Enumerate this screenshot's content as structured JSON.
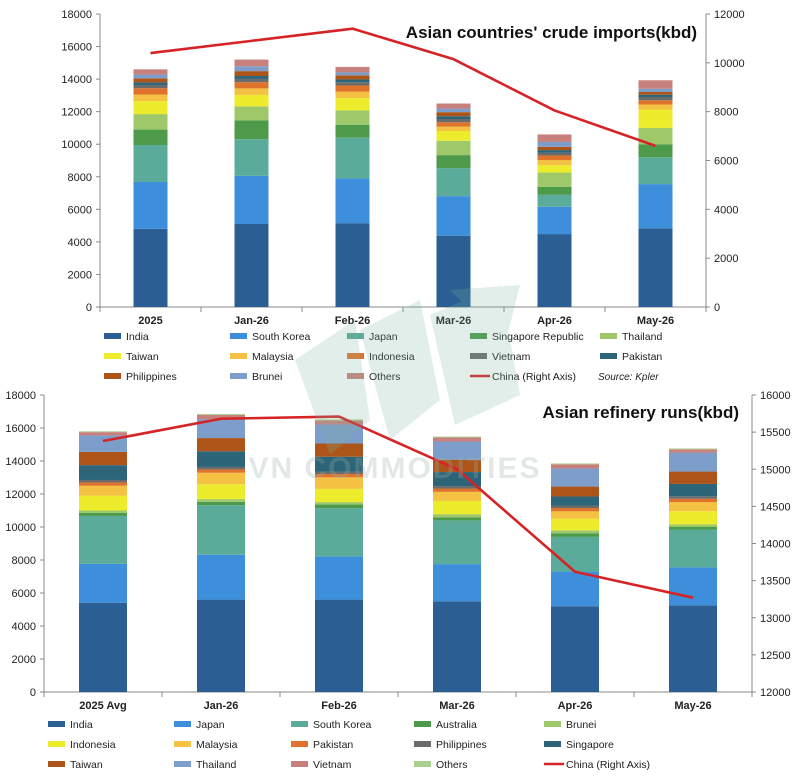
{
  "watermark": "VN COMMODITIES",
  "chart_data": [
    {
      "type": "bar",
      "stacked": true,
      "title": "Asian countries' crude imports(kbd)",
      "source": "Source: Kpler",
      "categories": [
        "2025",
        "Jan-26",
        "Feb-26",
        "Mar-26",
        "Apr-26",
        "May-26"
      ],
      "ylim": [
        0,
        18000
      ],
      "yticks": [
        0,
        2000,
        4000,
        6000,
        8000,
        10000,
        12000,
        14000,
        16000,
        18000
      ],
      "y2lim": [
        0,
        12000
      ],
      "y2ticks": [
        0,
        2000,
        4000,
        6000,
        8000,
        10000,
        12000
      ],
      "grid": false,
      "legend_position": "bottom",
      "series": [
        {
          "name": "India",
          "color": "#2b5f94",
          "values": [
            4800,
            5100,
            5150,
            4380,
            4480,
            4830
          ]
        },
        {
          "name": "South Korea",
          "color": "#3e8fdb",
          "values": [
            2880,
            2960,
            2750,
            2430,
            1680,
            2720
          ]
        },
        {
          "name": "Japan",
          "color": "#5aab9a",
          "values": [
            2270,
            2250,
            2500,
            1720,
            730,
            1650
          ]
        },
        {
          "name": "Singapore Republic",
          "color": "#4e9a4b",
          "values": [
            950,
            1150,
            800,
            800,
            500,
            800
          ]
        },
        {
          "name": "Thailand",
          "color": "#9ec86a",
          "values": [
            950,
            870,
            880,
            880,
            870,
            1000
          ]
        },
        {
          "name": "Taiwan",
          "color": "#ecec2c",
          "values": [
            800,
            700,
            750,
            600,
            450,
            1130
          ]
        },
        {
          "name": "Malaysia",
          "color": "#f4c143",
          "values": [
            400,
            400,
            400,
            270,
            320,
            310
          ]
        },
        {
          "name": "Indonesia",
          "color": "#e0732c",
          "values": [
            390,
            380,
            380,
            270,
            280,
            260
          ]
        },
        {
          "name": "Vietnam",
          "color": "#6b6b6b",
          "values": [
            200,
            200,
            200,
            200,
            160,
            200
          ]
        },
        {
          "name": "Pakistan",
          "color": "#2c6478",
          "values": [
            160,
            180,
            170,
            170,
            170,
            140
          ]
        },
        {
          "name": "Philippines",
          "color": "#ad5418",
          "values": [
            250,
            300,
            250,
            250,
            200,
            170
          ]
        },
        {
          "name": "Brunei",
          "color": "#7d9dca",
          "values": [
            230,
            300,
            180,
            220,
            300,
            200
          ]
        },
        {
          "name": "Others",
          "color": "#c8807c",
          "values": [
            320,
            410,
            340,
            310,
            460,
            520
          ]
        }
      ],
      "line_series": {
        "name": "China (Right Axis)",
        "axis": "right",
        "color": "#d62326",
        "values": [
          10400,
          10900,
          11400,
          10150,
          8050,
          6600
        ]
      }
    },
    {
      "type": "bar",
      "stacked": true,
      "title": "Asian refinery runs(kbd)",
      "categories": [
        "2025 Avg",
        "Jan-26",
        "Feb-26",
        "Mar-26",
        "Apr-26",
        "May-26"
      ],
      "ylim": [
        0,
        18000
      ],
      "yticks": [
        0,
        2000,
        4000,
        6000,
        8000,
        10000,
        12000,
        14000,
        16000,
        18000
      ],
      "y2lim": [
        12000,
        16000
      ],
      "y2ticks": [
        12000,
        12500,
        13000,
        13500,
        14000,
        14500,
        15000,
        15500,
        16000
      ],
      "grid": false,
      "legend_position": "bottom",
      "series": [
        {
          "name": "India",
          "color": "#2b5f94",
          "values": [
            5400,
            5600,
            5600,
            5500,
            5200,
            5250
          ]
        },
        {
          "name": "Japan",
          "color": "#3e8fdb",
          "values": [
            2370,
            2720,
            2620,
            2250,
            2100,
            2300
          ]
        },
        {
          "name": "South Korea",
          "color": "#5aab9a",
          "values": [
            2900,
            3000,
            2920,
            2650,
            2100,
            2300
          ]
        },
        {
          "name": "Australia",
          "color": "#4e9a4b",
          "values": [
            180,
            200,
            220,
            180,
            220,
            150
          ]
        },
        {
          "name": "Brunei",
          "color": "#9ec86a",
          "values": [
            150,
            170,
            150,
            200,
            180,
            160
          ]
        },
        {
          "name": "Indonesia",
          "color": "#ecec2c",
          "values": [
            900,
            900,
            800,
            800,
            700,
            800
          ]
        },
        {
          "name": "Malaysia",
          "color": "#f4c143",
          "values": [
            600,
            700,
            700,
            550,
            450,
            550
          ]
        },
        {
          "name": "Pakistan",
          "color": "#e0732c",
          "values": [
            200,
            200,
            200,
            200,
            200,
            200
          ]
        },
        {
          "name": "Philippines",
          "color": "#6b6b6b",
          "values": [
            150,
            150,
            150,
            150,
            150,
            150
          ]
        },
        {
          "name": "Singapore",
          "color": "#2c6478",
          "values": [
            900,
            950,
            900,
            850,
            550,
            750
          ]
        },
        {
          "name": "Taiwan",
          "color": "#ad5418",
          "values": [
            800,
            800,
            800,
            750,
            600,
            750
          ]
        },
        {
          "name": "Thailand",
          "color": "#7d9dca",
          "values": [
            1000,
            1150,
            1150,
            1100,
            1100,
            1150
          ]
        },
        {
          "name": "Vietnam",
          "color": "#c8807c",
          "values": [
            200,
            250,
            250,
            250,
            250,
            200
          ]
        },
        {
          "name": "Others",
          "color": "#a9d08e",
          "values": [
            50,
            60,
            60,
            50,
            50,
            50
          ]
        }
      ],
      "line_series": {
        "name": "China (Right Axis)",
        "axis": "right",
        "color": "#d62326",
        "values": [
          15380,
          15680,
          15710,
          15000,
          13620,
          13270
        ]
      }
    }
  ]
}
